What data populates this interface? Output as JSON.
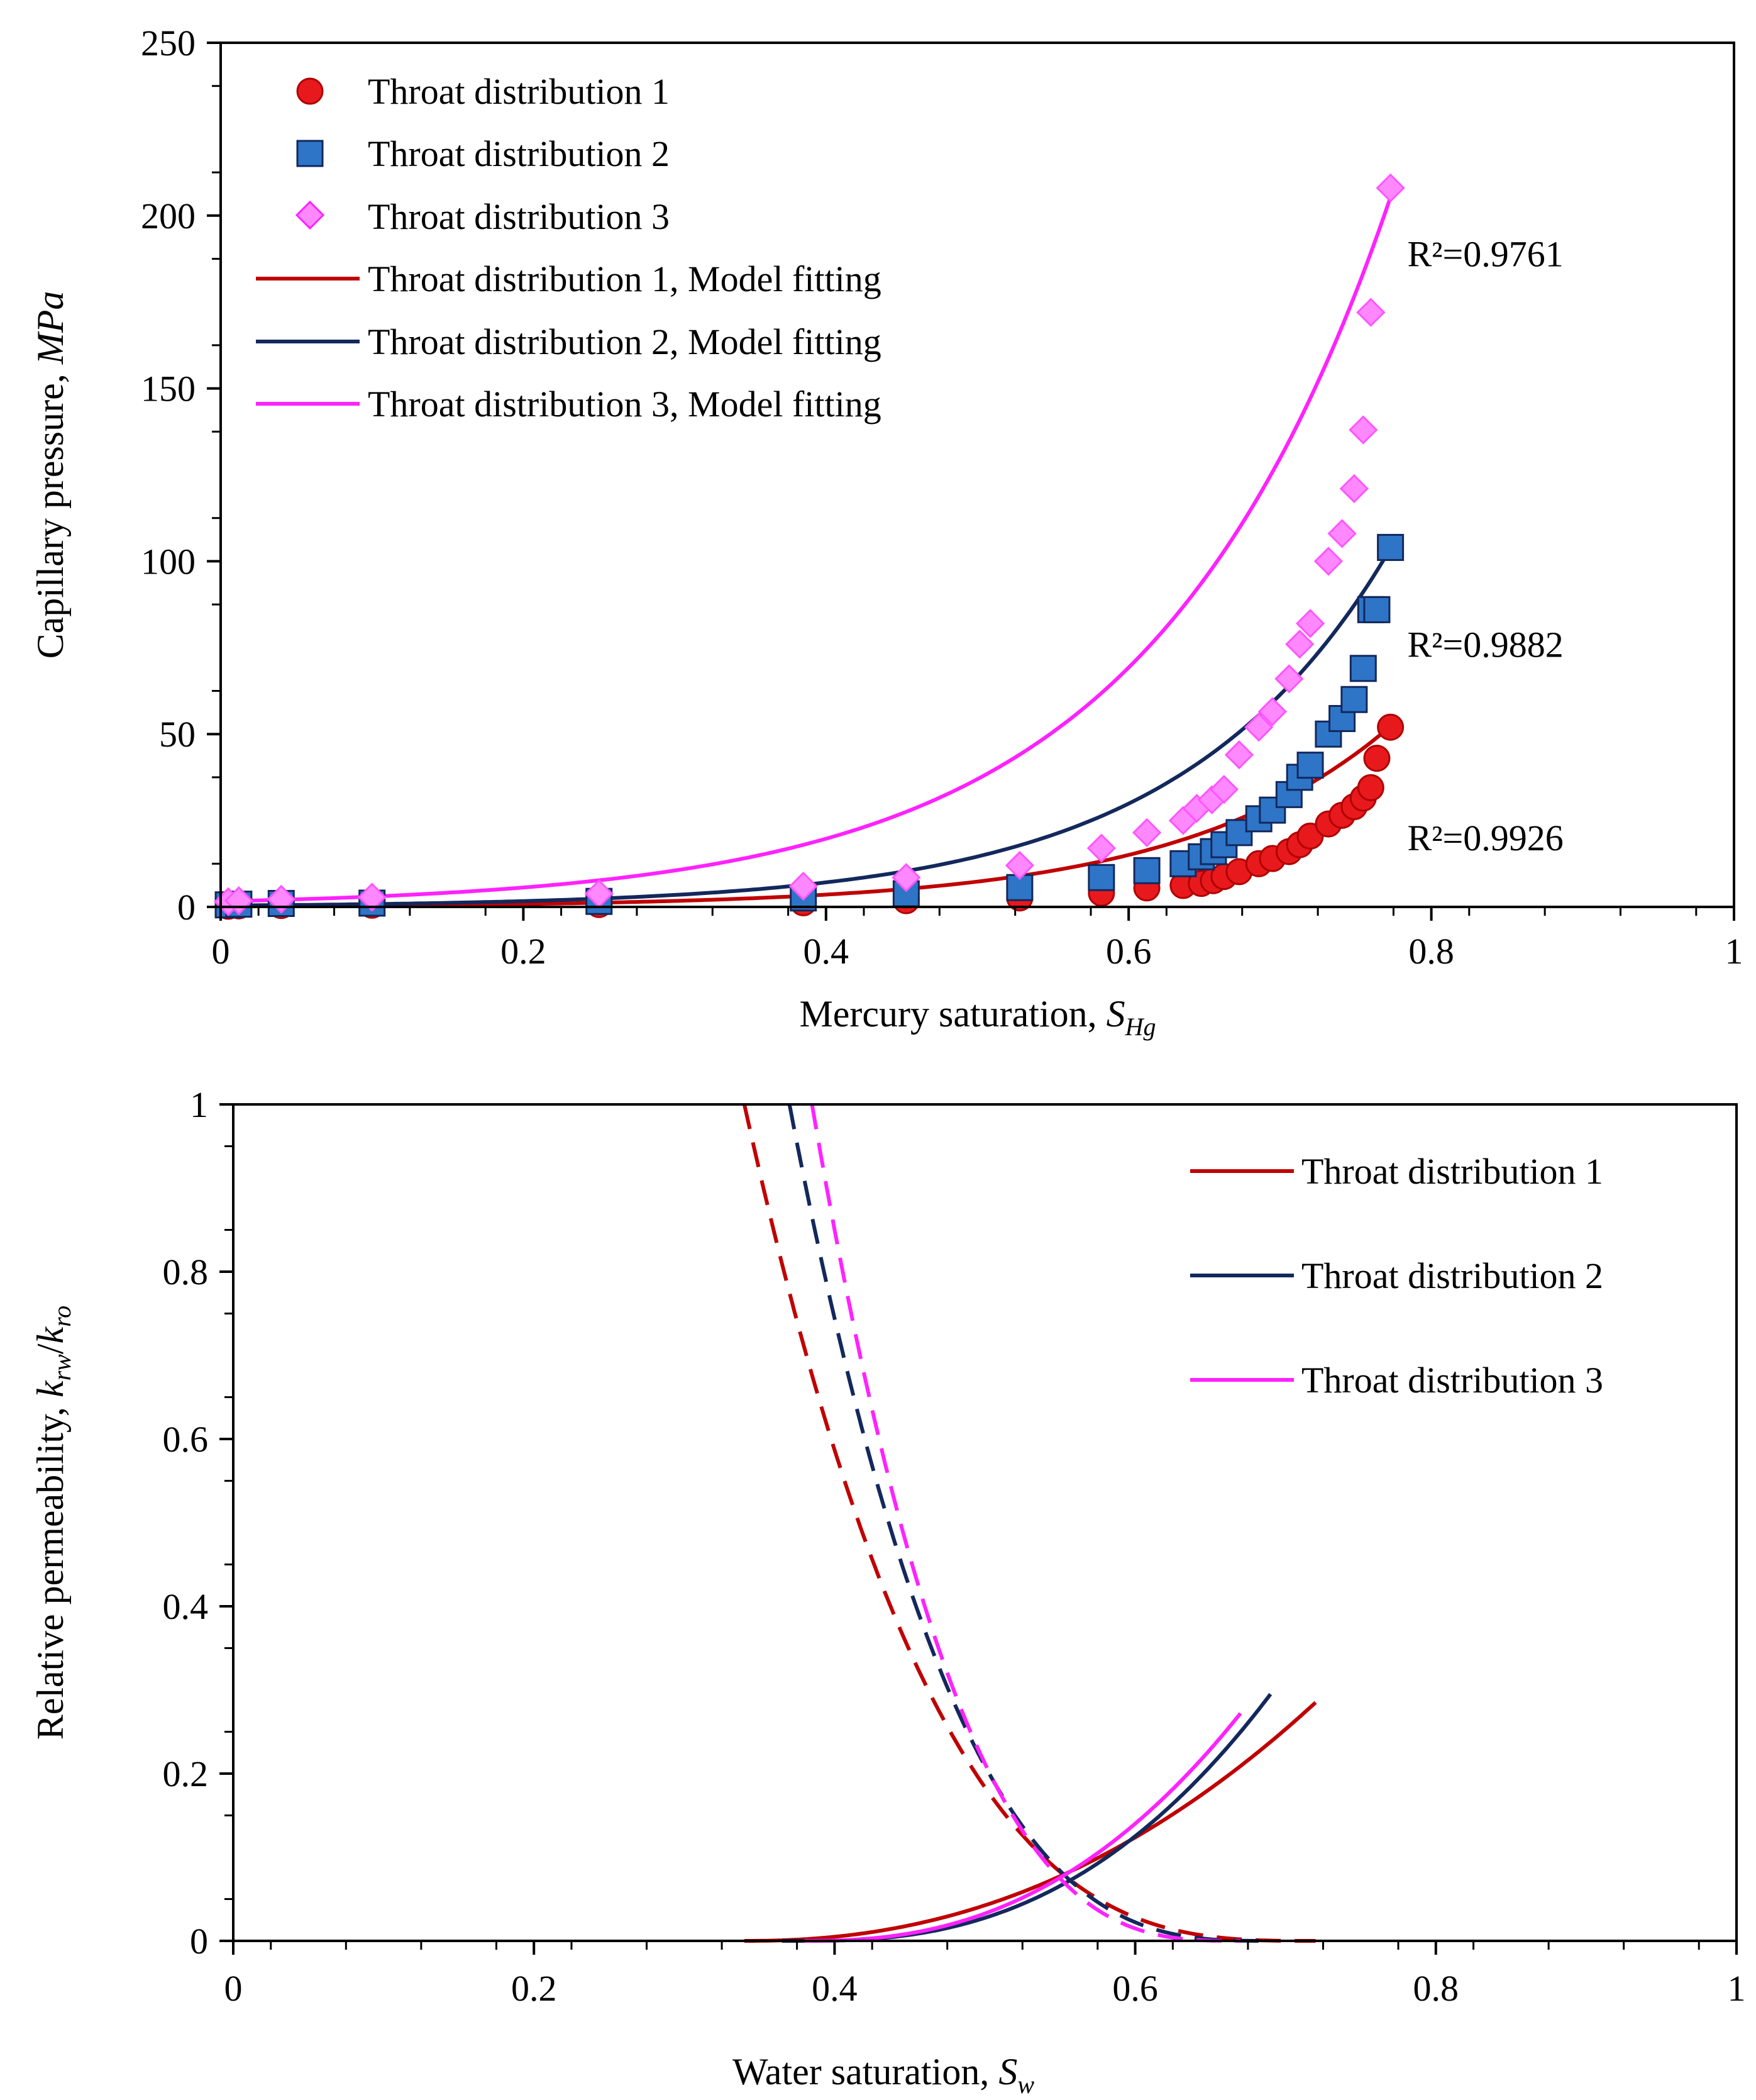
{
  "chart_data": [
    {
      "type": "scatter",
      "xlabel": "Mercury saturation,",
      "xlabel_symbol": "S",
      "xlabel_subscript": "Hg",
      "ylabel": "Capillary pressure,",
      "ylabel_unit": "MPa",
      "xlim": [
        0,
        1
      ],
      "ylim": [
        0,
        250
      ],
      "xticks": [
        "0",
        "0.2",
        "0.4",
        "0.6",
        "0.8",
        "1"
      ],
      "xtick_values": [
        0,
        0.2,
        0.4,
        0.6,
        0.8,
        1
      ],
      "yticks": [
        "0",
        "50",
        "100",
        "150",
        "200",
        "250"
      ],
      "ytick_values": [
        0,
        50,
        100,
        150,
        200,
        250
      ],
      "legend_position": "top-left",
      "series": [
        {
          "name": "Throat distribution 1",
          "kind": "points",
          "marker": "circle",
          "color": "#e8191c",
          "x": [
            0.005,
            0.012,
            0.04,
            0.1,
            0.25,
            0.385,
            0.453,
            0.528,
            0.582,
            0.612,
            0.636,
            0.648,
            0.656,
            0.663,
            0.673,
            0.686,
            0.695,
            0.706,
            0.713,
            0.72,
            0.732,
            0.741,
            0.749,
            0.755,
            0.76,
            0.764,
            0.773
          ],
          "y": [
            0.2,
            0.3,
            0.4,
            0.5,
            0.7,
            1.2,
            1.8,
            2.6,
            4,
            5.5,
            6.2,
            6.8,
            7.6,
            8.8,
            10.2,
            12.5,
            14,
            16,
            18,
            20.5,
            24,
            26.5,
            29,
            31.5,
            34.5,
            43,
            52
          ]
        },
        {
          "name": "Throat distribution 2",
          "kind": "points",
          "marker": "square",
          "color": "#2e75c8",
          "x": [
            0.005,
            0.012,
            0.04,
            0.1,
            0.25,
            0.385,
            0.453,
            0.528,
            0.582,
            0.612,
            0.636,
            0.648,
            0.656,
            0.663,
            0.673,
            0.686,
            0.695,
            0.706,
            0.713,
            0.72,
            0.732,
            0.741,
            0.749,
            0.755,
            0.76,
            0.764,
            0.773
          ],
          "y": [
            0.6,
            0.8,
            1,
            1.1,
            1.6,
            2.6,
            3.8,
            5.6,
            8.5,
            10.5,
            12.5,
            14.5,
            16,
            18,
            21.5,
            25.5,
            28,
            32.5,
            37.5,
            41,
            50,
            54.5,
            60,
            69,
            86,
            86,
            104
          ]
        },
        {
          "name": "Throat distribution 3",
          "kind": "points",
          "marker": "diamond",
          "color": "#ff55ff",
          "x": [
            0.005,
            0.012,
            0.04,
            0.1,
            0.25,
            0.385,
            0.453,
            0.528,
            0.582,
            0.612,
            0.636,
            0.645,
            0.655,
            0.663,
            0.673,
            0.686,
            0.695,
            0.706,
            0.713,
            0.72,
            0.732,
            0.741,
            0.749,
            0.755,
            0.76,
            0.773
          ],
          "y": [
            1.5,
            1.8,
            2.2,
            2.8,
            3.8,
            6,
            8.5,
            12,
            17,
            21.5,
            25,
            28.5,
            31,
            34,
            44,
            52,
            56.5,
            66,
            76,
            82,
            100,
            108,
            121,
            138,
            172,
            208
          ]
        },
        {
          "name": "Throat distribution 1, Model fitting",
          "kind": "line",
          "color": "#c00000",
          "model": "exp",
          "a": 0.2,
          "b": 7.2,
          "x_end": 0.773
        },
        {
          "name": "Throat distribution 2, Model fitting",
          "kind": "line",
          "color": "#13285c",
          "model": "exp",
          "a": 0.4,
          "b": 7.19,
          "x_end": 0.773
        },
        {
          "name": "Throat distribution 3, Model fitting",
          "kind": "line",
          "color": "#ff22ff",
          "model": "exp",
          "a": 1.6,
          "b": 6.28,
          "x_end": 0.773
        }
      ],
      "annotations": [
        {
          "text": "R²=0.9761",
          "x": 0.78,
          "y": 189
        },
        {
          "text": "R²=0.9882",
          "x": 0.78,
          "y": 76
        },
        {
          "text": "R²=0.9926",
          "x": 0.78,
          "y": 20
        }
      ]
    },
    {
      "type": "line",
      "xlabel": "Water saturation,",
      "xlabel_symbol": "S",
      "xlabel_subscript": "w",
      "ylabel": "Relative permeability,",
      "ylabel_symbol": "k",
      "ylabel_sub1": "rw",
      "ylabel_sub2": "ro",
      "xlim": [
        0,
        1
      ],
      "ylim": [
        0,
        1
      ],
      "xticks": [
        "0",
        "0.2",
        "0.4",
        "0.6",
        "0.8",
        "1"
      ],
      "xtick_values": [
        0,
        0.2,
        0.4,
        0.6,
        0.8,
        1
      ],
      "yticks": [
        "0",
        "0.2",
        "0.4",
        "0.6",
        "0.8",
        "1"
      ],
      "ytick_values": [
        0,
        0.2,
        0.4,
        0.6,
        0.8,
        1
      ],
      "legend_position": "top-right",
      "series": [
        {
          "name": "Throat distribution 1",
          "color": "#c00000",
          "swi": 0.34,
          "swmax": 0.72,
          "krw_end": 0.285,
          "nw": 2.2,
          "krw_x0": 0.34,
          "kro_x0": 0.34,
          "no": 3.1
        },
        {
          "name": "Throat distribution 2",
          "color": "#13285c",
          "swi": 0.365,
          "swmax": 0.69,
          "krw_end": 0.295,
          "nw": 2.5,
          "krw_x0": 0.38,
          "kro_x0": 0.37,
          "no": 3.0
        },
        {
          "name": "Throat distribution 3",
          "color": "#ff22ff",
          "swi": 0.38,
          "swmax": 0.67,
          "krw_end": 0.272,
          "nw": 2.4,
          "krw_x0": 0.38,
          "kro_x0": 0.385,
          "no": 3.0
        }
      ]
    }
  ]
}
